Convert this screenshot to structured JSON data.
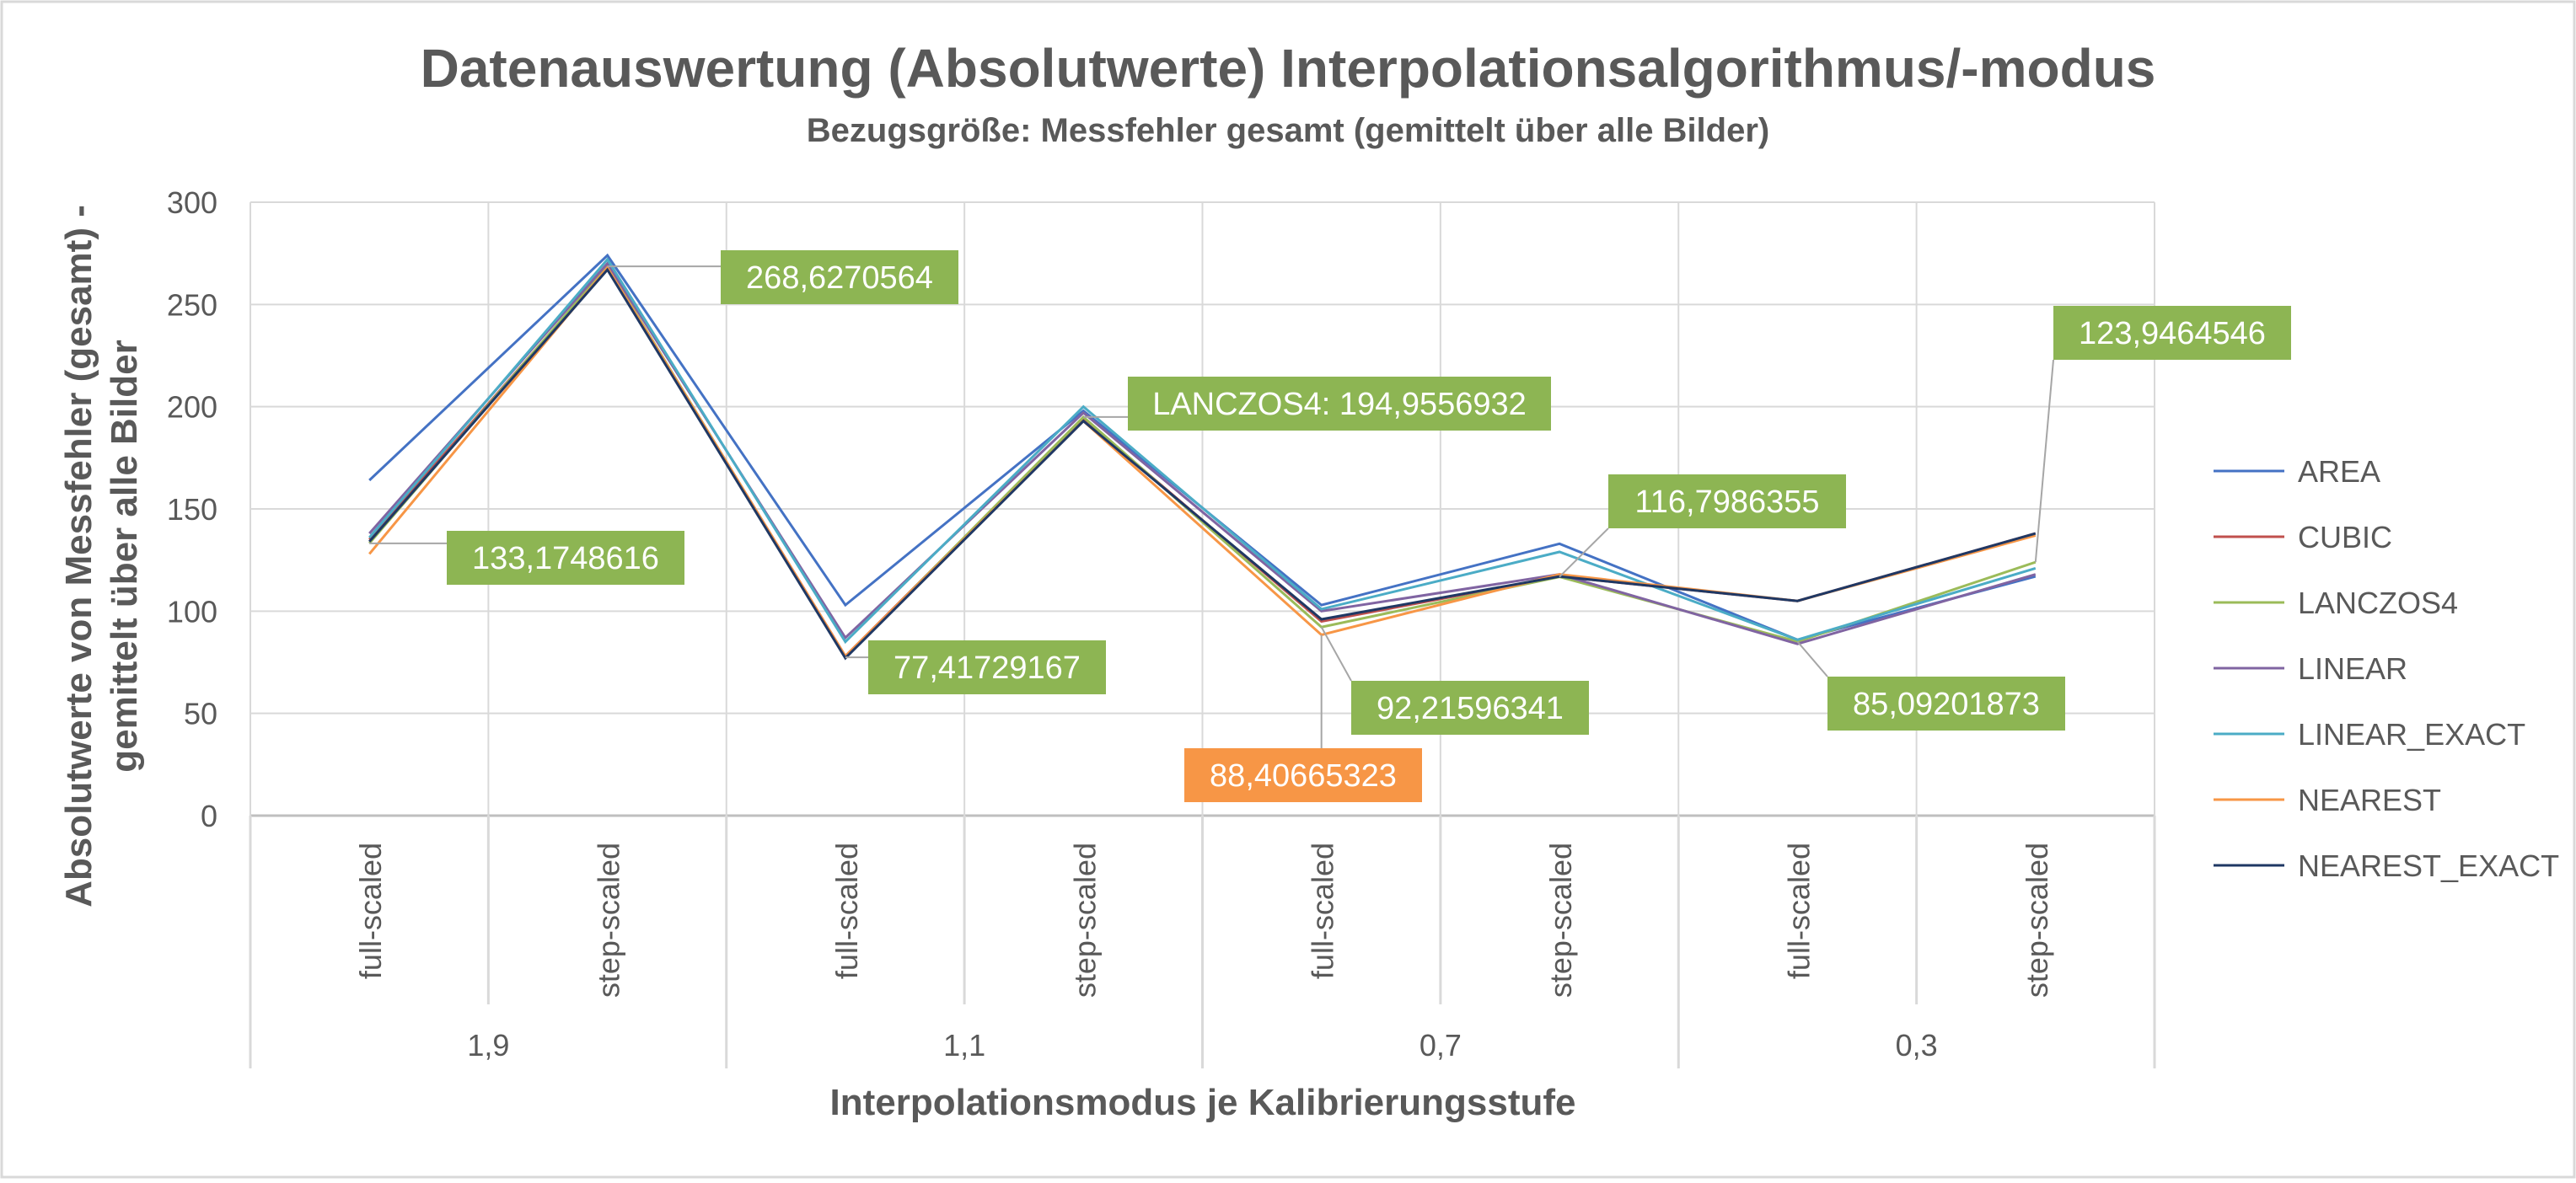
{
  "chart_data": {
    "type": "line",
    "title": "Datenauswertung (Absolutwerte) Interpolationsalgorithmus/-modus",
    "subtitle": "Bezugsgröße: Messfehler gesamt (gemittelt über alle Bilder)",
    "ylabel_line1": "Absolutwerte von Messfehler (gesamt) -",
    "ylabel_line2": "gemittelt über alle Bilder",
    "xlabel": "Interpolationsmodus je Kalibrierungsstufe",
    "ylim": [
      0,
      300
    ],
    "yticks": [
      "0",
      "50",
      "100",
      "150",
      "200",
      "250",
      "300"
    ],
    "grid": true,
    "legend_position": "right",
    "groups": [
      "1,9",
      "1,1",
      "0,7",
      "0,3"
    ],
    "categories": [
      "full-scaled",
      "step-scaled",
      "full-scaled",
      "step-scaled",
      "full-scaled",
      "step-scaled",
      "full-scaled",
      "step-scaled"
    ],
    "series": [
      {
        "name": "AREA",
        "color": "#4472c4",
        "values": [
          164,
          274,
          103,
          198,
          103,
          133,
          86,
          117
        ]
      },
      {
        "name": "CUBIC",
        "color": "#c0504d",
        "values": [
          135,
          268,
          78,
          194,
          95,
          117,
          105,
          138
        ]
      },
      {
        "name": "LANCZOS4",
        "color": "#9bbb59",
        "values": [
          133.1748616,
          268.6270564,
          77.41729167,
          194.9556932,
          92.21596341,
          116.7986355,
          85.09201873,
          123.9464546
        ]
      },
      {
        "name": "LINEAR",
        "color": "#8064a2",
        "values": [
          138,
          270,
          87,
          197,
          100,
          118,
          84,
          118
        ]
      },
      {
        "name": "LINEAR_EXACT",
        "color": "#4bacc6",
        "values": [
          136,
          272,
          85,
          200,
          101,
          129,
          86,
          121
        ]
      },
      {
        "name": "NEAREST",
        "color": "#f79646",
        "values": [
          128,
          268,
          78,
          193,
          88.40665323,
          118,
          105,
          137
        ]
      },
      {
        "name": "NEAREST_EXACT",
        "color": "#1f3864",
        "values": [
          134,
          267,
          77,
          193,
          96,
          117,
          105,
          138
        ]
      }
    ],
    "annotations": [
      {
        "text": "268,6270564",
        "series": "LANCZOS4",
        "index": 1,
        "color": "#8db553"
      },
      {
        "text": "133,1748616",
        "series": "LANCZOS4",
        "index": 0,
        "color": "#8db553"
      },
      {
        "text": "LANCZOS4: 194,9556932",
        "series": "LANCZOS4",
        "index": 3,
        "color": "#8db553"
      },
      {
        "text": "77,41729167",
        "series": "LANCZOS4",
        "index": 2,
        "color": "#8db553"
      },
      {
        "text": "116,7986355",
        "series": "LANCZOS4",
        "index": 5,
        "color": "#8db553"
      },
      {
        "text": "92,21596341",
        "series": "LANCZOS4",
        "index": 4,
        "color": "#8db553"
      },
      {
        "text": "88,40665323",
        "series": "NEAREST",
        "index": 4,
        "color": "#f79646"
      },
      {
        "text": "85,09201873",
        "series": "LANCZOS4",
        "index": 6,
        "color": "#8db553"
      },
      {
        "text": "123,9464546",
        "series": "LANCZOS4",
        "index": 7,
        "color": "#8db553"
      }
    ]
  }
}
